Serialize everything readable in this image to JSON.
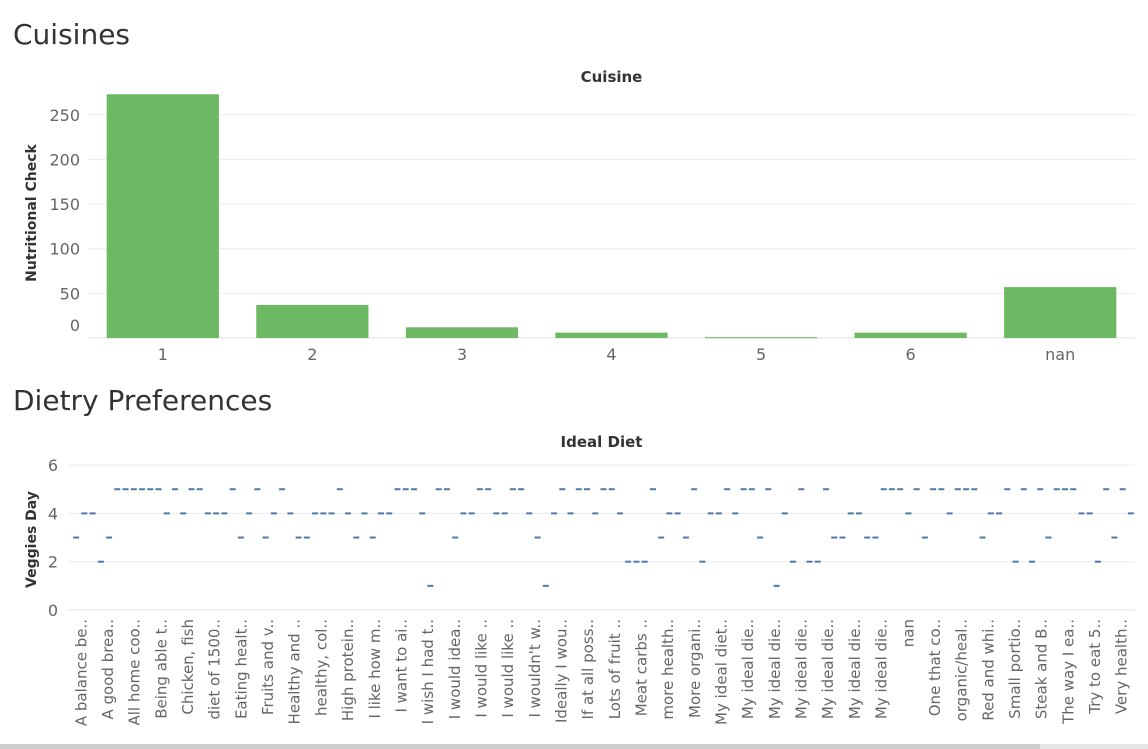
{
  "sections": {
    "cuisines_title": "Cuisines",
    "diet_title": "Dietry Preferences"
  },
  "chart_data": [
    {
      "type": "bar",
      "title": "Cuisine",
      "ylabel": "Nutritional Check",
      "xlabel": "",
      "categories": [
        "1",
        "2",
        "3",
        "4",
        "5",
        "6",
        "nan"
      ],
      "values": [
        273,
        37,
        12,
        6,
        1,
        6,
        57
      ],
      "ylim": [
        0,
        280
      ],
      "yticks": [
        0,
        50,
        100,
        150,
        200,
        250
      ],
      "color": "#6db862",
      "grid": true
    },
    {
      "type": "scatter",
      "title": "Ideal Diet",
      "ylabel": "Veggies Day",
      "xlabel": "",
      "ylim": [
        0,
        6.5
      ],
      "yticks": [
        0,
        2,
        4,
        6
      ],
      "marker": "dash",
      "color": "#4e79a7",
      "grid": true,
      "category_labels": [
        "A balance be..",
        "A good brea..",
        "All home coo..",
        "Being able t..",
        "Chicken, fish",
        "diet of 1500..",
        "Eating healt..",
        "Fruits and v..",
        "Healthy and ..",
        "healthy, col..",
        "High protein..",
        "I like how m..",
        "I want to ai..",
        "I wish I had t..",
        "I would idea..",
        "I would like ..",
        "I would like ..",
        "I wouldn't w..",
        "Ideally I wou..",
        "If at all poss..",
        "Lots of fruit ..",
        "Meat carbs ..",
        "more health..",
        "More organi..",
        "My ideal diet..",
        "My ideal die..",
        "My ideal die..",
        "My ideal die..",
        "My ideal die..",
        "My ideal die..",
        "My ideal die..",
        "nan",
        "One that co..",
        "organic/heal..",
        "Red and whi..",
        "Small portio..",
        "Steak and B..",
        "The way I ea..",
        "Try to eat 5..",
        "Very health.."
      ],
      "values": [
        3,
        4,
        4,
        2,
        3,
        5,
        5,
        5,
        5,
        5,
        5,
        4,
        5,
        4,
        5,
        5,
        4,
        4,
        4,
        5,
        3,
        4,
        5,
        3,
        4,
        5,
        4,
        3,
        3,
        4,
        4,
        4,
        5,
        4,
        3,
        4,
        3,
        4,
        4,
        5,
        5,
        5,
        4,
        1,
        5,
        5,
        3,
        4,
        4,
        5,
        5,
        4,
        4,
        5,
        5,
        4,
        3,
        1,
        4,
        5,
        4,
        5,
        5,
        4,
        5,
        5,
        4,
        2,
        2,
        2,
        5,
        3,
        4,
        4,
        3,
        5,
        2,
        4,
        4,
        5,
        4,
        5,
        5,
        3,
        5,
        1,
        4,
        2,
        5,
        2,
        2,
        5,
        3,
        3,
        4,
        4,
        3,
        3,
        5,
        5,
        5,
        4,
        5,
        3,
        5,
        5,
        4,
        5,
        5,
        5,
        3,
        4,
        4,
        5,
        2,
        5,
        2,
        5,
        3,
        5,
        5,
        5,
        4,
        4,
        2,
        5,
        3,
        5,
        4
      ]
    }
  ]
}
